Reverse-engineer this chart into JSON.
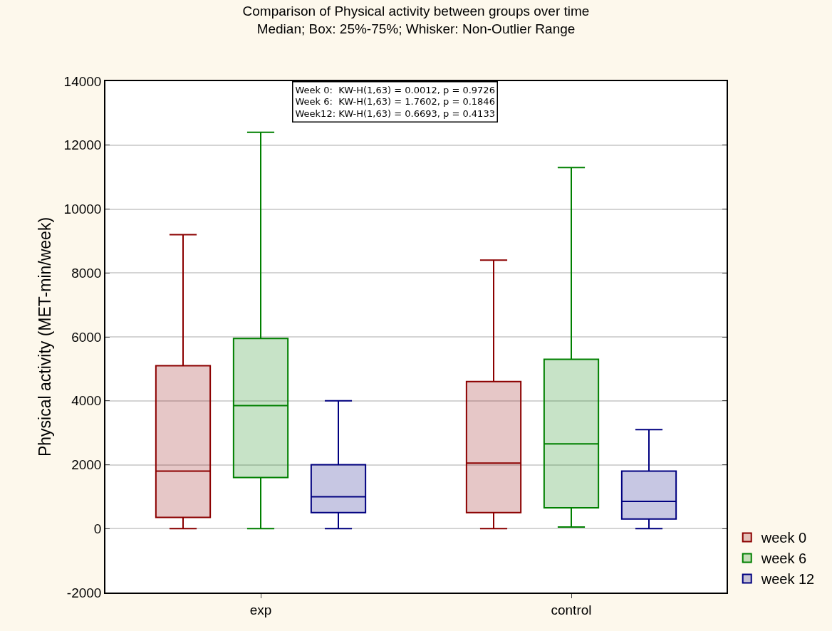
{
  "chart_data": {
    "type": "box",
    "title": "Comparison of Physical activity between groups over time",
    "subtitle": "Median; Box: 25%-75%; Whisker: Non-Outlier Range",
    "ylabel": "Physical activity (MET-min/week)",
    "categories": [
      "exp",
      "control"
    ],
    "series": [
      {
        "name": "week 0",
        "color": "#8b0000",
        "boxes": [
          {
            "low": 0,
            "q1": 350,
            "median": 1800,
            "q3": 5100,
            "high": 9200
          },
          {
            "low": 0,
            "q1": 500,
            "median": 2050,
            "q3": 4600,
            "high": 8400
          }
        ]
      },
      {
        "name": "week 6",
        "color": "#008000",
        "boxes": [
          {
            "low": 0,
            "q1": 1600,
            "median": 3850,
            "q3": 5950,
            "high": 12400
          },
          {
            "low": 50,
            "q1": 650,
            "median": 2650,
            "q3": 5300,
            "high": 11300
          }
        ]
      },
      {
        "name": "week 12",
        "color": "#000080",
        "boxes": [
          {
            "low": 0,
            "q1": 500,
            "median": 1000,
            "q3": 2000,
            "high": 4000
          },
          {
            "low": 0,
            "q1": 300,
            "median": 850,
            "q3": 1800,
            "high": 3100
          }
        ]
      }
    ],
    "ylim": [
      -2000,
      14000
    ],
    "yticks": [
      -2000,
      0,
      2000,
      4000,
      6000,
      8000,
      10000,
      12000,
      14000
    ],
    "grid": "y",
    "legend": "bottom right",
    "annotations": [
      "Week 0:  KW-H(1,63) = 0.0012, p = 0.9726",
      "Week 6:  KW-H(1,63) = 1.7602, p = 0.1846",
      "Week12: KW-H(1,63) = 0.6693, p = 0.4133"
    ]
  }
}
